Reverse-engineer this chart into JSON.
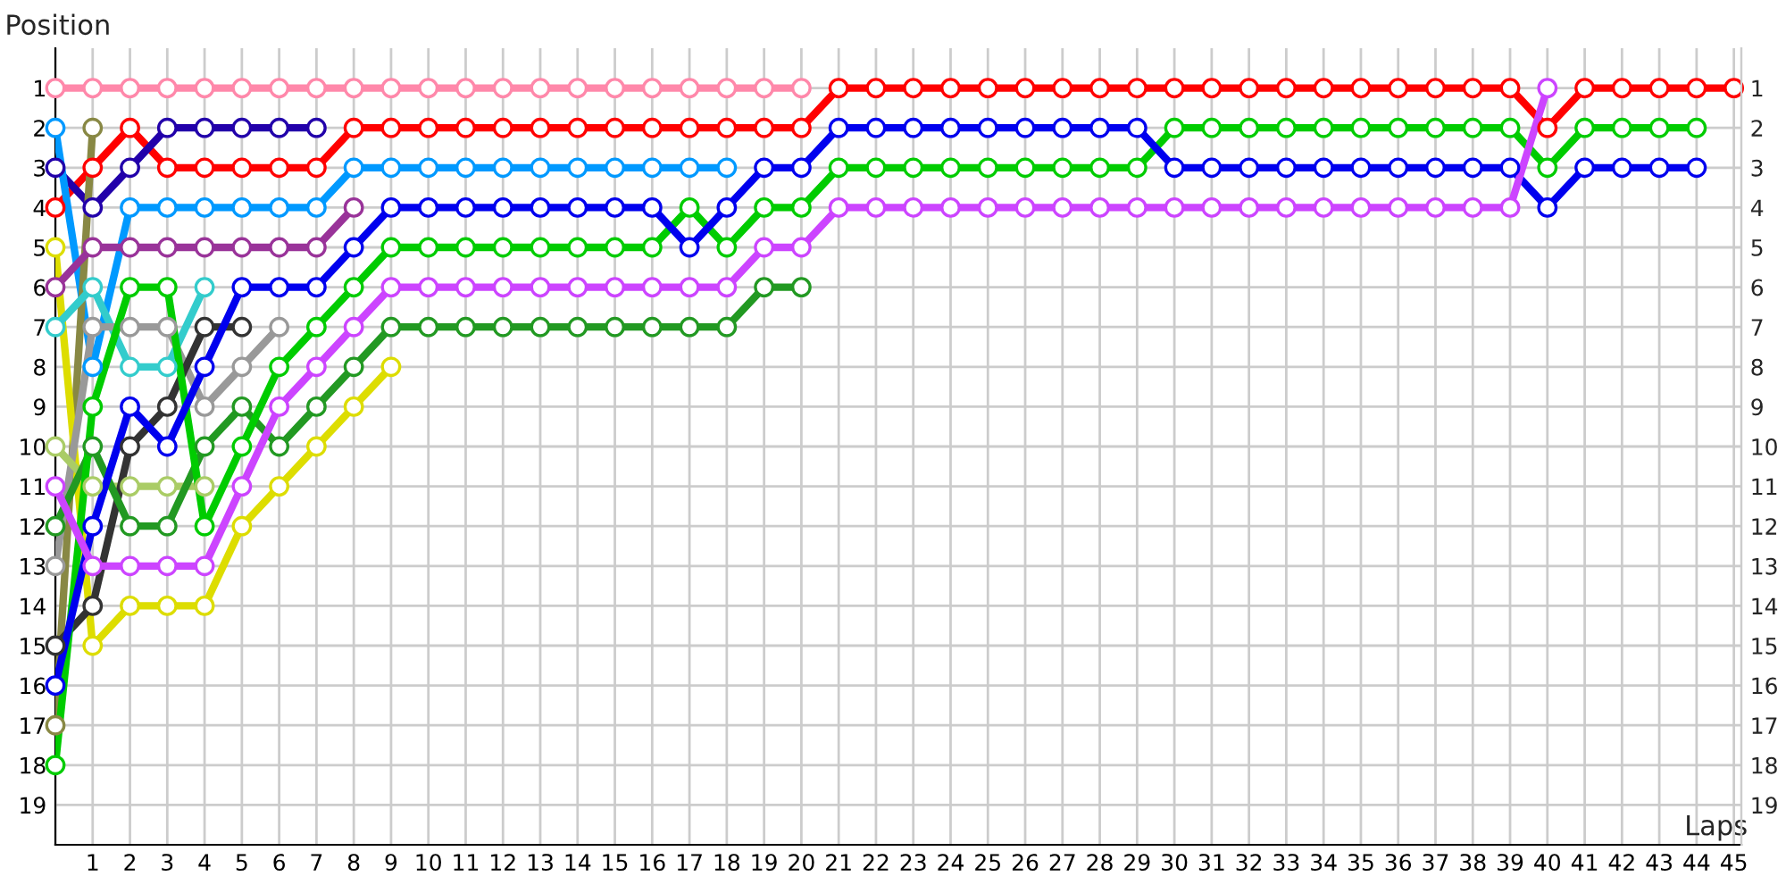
{
  "chart_data": {
    "type": "line",
    "xlabel": "Laps",
    "ylabel": "Position",
    "xlim": [
      0,
      45.2
    ],
    "xticks": [
      {
        "value": 0,
        "label": null
      },
      1,
      2,
      3,
      4,
      5,
      6,
      7,
      8,
      9,
      10,
      11,
      12,
      13,
      14,
      15,
      16,
      17,
      18,
      19,
      20,
      21,
      22,
      23,
      24,
      25,
      26,
      27,
      28,
      29,
      30,
      31,
      32,
      33,
      34,
      35,
      36,
      37,
      38,
      39,
      40,
      41,
      42,
      43,
      44,
      45
    ],
    "ylim": [
      20,
      0
    ],
    "yticks": [
      1,
      2,
      3,
      4,
      5,
      6,
      7,
      8,
      9,
      10,
      11,
      12,
      13,
      14,
      15,
      16,
      17,
      18,
      19
    ],
    "y2lim": [
      20,
      0
    ],
    "y2ticks": [
      1,
      2,
      3,
      4,
      5,
      6,
      7,
      8,
      9,
      10,
      11,
      12,
      13,
      14,
      15,
      16,
      17,
      18,
      19
    ],
    "grid": true,
    "legend": false,
    "marker": "circle",
    "line_style": "solid",
    "series": [
      {
        "color": "#ff88aa",
        "x": [
          0,
          1,
          2,
          3,
          4,
          5,
          6,
          7,
          8,
          9,
          10,
          11,
          12,
          13,
          14,
          15,
          16,
          17,
          18,
          19,
          20
        ],
        "values": [
          1,
          1,
          1,
          1,
          1,
          1,
          1,
          1,
          1,
          1,
          1,
          1,
          1,
          1,
          1,
          1,
          1,
          1,
          1,
          1,
          1
        ]
      },
      {
        "color": "#ff0000",
        "x": [
          0,
          1,
          2,
          3,
          4,
          5,
          6,
          7,
          8,
          9,
          10,
          11,
          12,
          13,
          14,
          15,
          16,
          17,
          18,
          19,
          20,
          21,
          22,
          23,
          24,
          25,
          26,
          27,
          28,
          29,
          30,
          31,
          32,
          33,
          34,
          35,
          36,
          37,
          38,
          39,
          40,
          41,
          42,
          43,
          44,
          45
        ],
        "values": [
          4,
          3,
          2,
          3,
          3,
          3,
          3,
          3,
          2,
          2,
          2,
          2,
          2,
          2,
          2,
          2,
          2,
          2,
          2,
          2,
          2,
          1,
          1,
          1,
          1,
          1,
          1,
          1,
          1,
          1,
          1,
          1,
          1,
          1,
          1,
          1,
          1,
          1,
          1,
          1,
          2,
          1,
          1,
          1,
          1,
          1
        ]
      },
      {
        "color": "#2200aa",
        "x": [
          0,
          1,
          2,
          3,
          4,
          5,
          6,
          7
        ],
        "values": [
          3,
          4,
          3,
          2,
          2,
          2,
          2,
          2
        ]
      },
      {
        "color": "#0099ff",
        "x": [
          0,
          1,
          2,
          3,
          4,
          5,
          6,
          7,
          8,
          9,
          10,
          11,
          12,
          13,
          14,
          15,
          16,
          17,
          18
        ],
        "values": [
          2,
          8,
          4,
          4,
          4,
          4,
          4,
          4,
          3,
          3,
          3,
          3,
          3,
          3,
          3,
          3,
          3,
          3,
          3
        ]
      },
      {
        "color": "#888844",
        "x": [
          0,
          1
        ],
        "values": [
          17,
          2
        ]
      },
      {
        "color": "#dddd00",
        "x": [
          0,
          1,
          2,
          3,
          4,
          5,
          6,
          7,
          8,
          9
        ],
        "values": [
          5,
          15,
          14,
          14,
          14,
          12,
          11,
          10,
          9,
          8
        ]
      },
      {
        "color": "#993399",
        "x": [
          0,
          1,
          2,
          3,
          4,
          5,
          6,
          7,
          8
        ],
        "values": [
          6,
          5,
          5,
          5,
          5,
          5,
          5,
          5,
          4
        ]
      },
      {
        "color": "#33cccc",
        "x": [
          0,
          1,
          2,
          3,
          4
        ],
        "values": [
          7,
          6,
          8,
          8,
          6
        ]
      },
      {
        "color": "#999999",
        "x": [
          0,
          1,
          2,
          3,
          4,
          5,
          6
        ],
        "values": [
          13,
          7,
          7,
          7,
          9,
          8,
          7
        ]
      },
      {
        "color": "#aacc66",
        "x": [
          0,
          1,
          2,
          3,
          4
        ],
        "values": [
          10,
          11,
          11,
          11,
          11
        ]
      },
      {
        "color": "#333333",
        "x": [
          0,
          1,
          2,
          3,
          4,
          5
        ],
        "values": [
          15,
          14,
          10,
          9,
          7,
          7
        ]
      },
      {
        "color": "#229922",
        "x": [
          0,
          1,
          2,
          3,
          4,
          5,
          6,
          7,
          8,
          9,
          10,
          11,
          12,
          13,
          14,
          15,
          16,
          17,
          18,
          19,
          20
        ],
        "values": [
          12,
          10,
          12,
          12,
          10,
          9,
          10,
          9,
          8,
          7,
          7,
          7,
          7,
          7,
          7,
          7,
          7,
          7,
          7,
          6,
          6
        ]
      },
      {
        "color": "#00cc00",
        "x": [
          0,
          1,
          2,
          3,
          4,
          5,
          6,
          7,
          8,
          9,
          10,
          11,
          12,
          13,
          14,
          15,
          16,
          17,
          18,
          19,
          20,
          21,
          22,
          23,
          24,
          25,
          26,
          27,
          28,
          29,
          30,
          31,
          32,
          33,
          34,
          35,
          36,
          37,
          38,
          39,
          40,
          41,
          42,
          43,
          44
        ],
        "values": [
          18,
          9,
          6,
          6,
          12,
          10,
          8,
          7,
          6,
          5,
          5,
          5,
          5,
          5,
          5,
          5,
          5,
          4,
          5,
          4,
          4,
          3,
          3,
          3,
          3,
          3,
          3,
          3,
          3,
          3,
          2,
          2,
          2,
          2,
          2,
          2,
          2,
          2,
          2,
          2,
          3,
          2,
          2,
          2,
          2
        ]
      },
      {
        "color": "#0000ee",
        "x": [
          0,
          1,
          2,
          3,
          4,
          5,
          6,
          7,
          8,
          9,
          10,
          11,
          12,
          13,
          14,
          15,
          16,
          17,
          18,
          19,
          20,
          21,
          22,
          23,
          24,
          25,
          26,
          27,
          28,
          29,
          30,
          31,
          32,
          33,
          34,
          35,
          36,
          37,
          38,
          39,
          40,
          41,
          42,
          43,
          44
        ],
        "values": [
          16,
          12,
          9,
          10,
          8,
          6,
          6,
          6,
          5,
          4,
          4,
          4,
          4,
          4,
          4,
          4,
          4,
          5,
          4,
          3,
          3,
          2,
          2,
          2,
          2,
          2,
          2,
          2,
          2,
          2,
          3,
          3,
          3,
          3,
          3,
          3,
          3,
          3,
          3,
          3,
          4,
          3,
          3,
          3,
          3
        ]
      },
      {
        "color": "#cc44ff",
        "x": [
          0,
          1,
          2,
          3,
          4,
          5,
          6,
          7,
          8,
          9,
          10,
          11,
          12,
          13,
          14,
          15,
          16,
          17,
          18,
          19,
          20,
          21,
          22,
          23,
          24,
          25,
          26,
          27,
          28,
          29,
          30,
          31,
          32,
          33,
          34,
          35,
          36,
          37,
          38,
          39,
          40
        ],
        "values": [
          11,
          13,
          13,
          13,
          13,
          11,
          9,
          8,
          7,
          6,
          6,
          6,
          6,
          6,
          6,
          6,
          6,
          6,
          6,
          5,
          5,
          4,
          4,
          4,
          4,
          4,
          4,
          4,
          4,
          4,
          4,
          4,
          4,
          4,
          4,
          4,
          4,
          4,
          4,
          4,
          1
        ]
      }
    ]
  }
}
